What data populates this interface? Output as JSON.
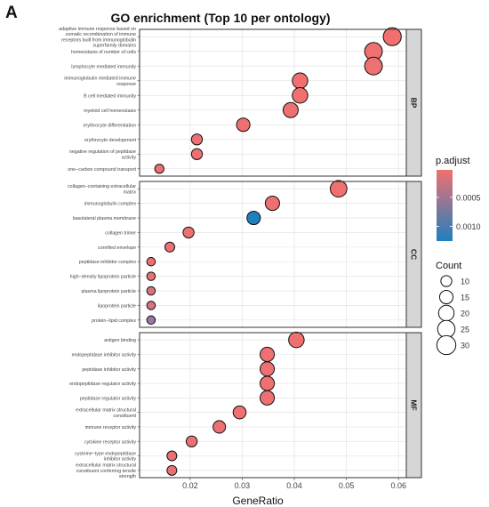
{
  "figure": {
    "panel_letter": "A",
    "title": "GO enrichment (Top 10 per ontology)"
  },
  "chart_data": {
    "type": "scatter",
    "title": "GO enrichment (Top 10 per ontology)",
    "xlabel": "GeneRatio",
    "ylabel": "",
    "xlim": [
      0.0103,
      0.0615
    ],
    "xticks": [
      0.02,
      0.03,
      0.04,
      0.05,
      0.06
    ],
    "xtick_labels": [
      "0.02",
      "0.03",
      "0.04",
      "0.05",
      "0.06"
    ],
    "grid": true,
    "panels": [
      {
        "strip": "BP",
        "terms": [
          {
            "label": "adaptive immune response based on somatic recombination of immune receptors built from immunoglobulin superfamily domains",
            "lines": [
              "adaptive immune response based on",
              "somatic recombination of immune",
              "receptors built from immunoglobulin",
              "superfamily domains"
            ],
            "x": 0.0588,
            "count": 27,
            "p_adjust": 3e-05
          },
          {
            "label": "homeostasis of number of cells",
            "lines": [
              "homeostasis of number of cells"
            ],
            "x": 0.0552,
            "count": 26,
            "p_adjust": 4e-05
          },
          {
            "label": "lymphocyte mediated immunity",
            "lines": [
              "lymphocyte mediated immunity"
            ],
            "x": 0.0552,
            "count": 26,
            "p_adjust": 4e-05
          },
          {
            "label": "immunoglobulin mediated immune response",
            "lines": [
              "immunoglobulin mediated immune",
              "response"
            ],
            "x": 0.0411,
            "count": 20,
            "p_adjust": 3e-05
          },
          {
            "label": "B cell mediated immunity",
            "lines": [
              "B cell mediated immunity"
            ],
            "x": 0.0411,
            "count": 20,
            "p_adjust": 3e-05
          },
          {
            "label": "myeloid cell homeostasis",
            "lines": [
              "myeloid cell homeostasis"
            ],
            "x": 0.0393,
            "count": 19,
            "p_adjust": 4e-05
          },
          {
            "label": "erythrocyte differentiation",
            "lines": [
              "erythrocyte differentiation"
            ],
            "x": 0.0302,
            "count": 15,
            "p_adjust": 4e-05
          },
          {
            "label": "erythrocyte development",
            "lines": [
              "erythrocyte development"
            ],
            "x": 0.0213,
            "count": 10,
            "p_adjust": 5e-05
          },
          {
            "label": "negative regulation of peptidase activity",
            "lines": [
              "negative regulation of peptidase",
              "activity"
            ],
            "x": 0.0213,
            "count": 10,
            "p_adjust": 5e-05
          },
          {
            "label": "one-carbon compound transport",
            "lines": [
              "one−carbon compound transport"
            ],
            "x": 0.0141,
            "count": 7,
            "p_adjust": 5e-05
          }
        ]
      },
      {
        "strip": "CC",
        "terms": [
          {
            "label": "collagen-containing extracellular matrix",
            "lines": [
              "collagen−containing extracellular",
              "matrix"
            ],
            "x": 0.0485,
            "count": 23,
            "p_adjust": 3e-05
          },
          {
            "label": "immunoglobulin complex",
            "lines": [
              "immunoglobulin complex"
            ],
            "x": 0.0358,
            "count": 17,
            "p_adjust": 4e-05
          },
          {
            "label": "basolateral plasma membrane",
            "lines": [
              "basolateral plasma membrane"
            ],
            "x": 0.0322,
            "count": 15,
            "p_adjust": 0.00125
          },
          {
            "label": "collagen trimer",
            "lines": [
              "collagen trimer"
            ],
            "x": 0.0197,
            "count": 10,
            "p_adjust": 5e-05
          },
          {
            "label": "cornified envelope",
            "lines": [
              "cornified envelope"
            ],
            "x": 0.0161,
            "count": 8,
            "p_adjust": 5e-05
          },
          {
            "label": "peptidase inhibitor complex",
            "lines": [
              "peptidase inhibitor complex"
            ],
            "x": 0.0125,
            "count": 6,
            "p_adjust": 6e-05
          },
          {
            "label": "high-density lipoprotein particle",
            "lines": [
              "high−density lipoprotein particle"
            ],
            "x": 0.0125,
            "count": 6,
            "p_adjust": 8e-05
          },
          {
            "label": "plasma lipoprotein particle",
            "lines": [
              "plasma lipoprotein particle"
            ],
            "x": 0.0125,
            "count": 6,
            "p_adjust": 0.00018
          },
          {
            "label": "lipoprotein particle",
            "lines": [
              "lipoprotein particle"
            ],
            "x": 0.0125,
            "count": 6,
            "p_adjust": 0.00018
          },
          {
            "label": "protein-lipid complex",
            "lines": [
              "protein−lipid complex"
            ],
            "x": 0.0125,
            "count": 6,
            "p_adjust": 0.0006
          }
        ]
      },
      {
        "strip": "MF",
        "terms": [
          {
            "label": "antigen binding",
            "lines": [
              "antigen binding"
            ],
            "x": 0.0404,
            "count": 20,
            "p_adjust": 3e-05
          },
          {
            "label": "endopeptidase inhibitor activity",
            "lines": [
              "endopeptidase inhibitor activity"
            ],
            "x": 0.0348,
            "count": 17,
            "p_adjust": 4e-05
          },
          {
            "label": "peptidase inhibitor activity",
            "lines": [
              "peptidase inhibitor activity"
            ],
            "x": 0.0348,
            "count": 17,
            "p_adjust": 4e-05
          },
          {
            "label": "endopeptidase regulator activity",
            "lines": [
              "endopeptidase regulator activity"
            ],
            "x": 0.0348,
            "count": 17,
            "p_adjust": 4e-05
          },
          {
            "label": "peptidase regulator activity",
            "lines": [
              "peptidase regulator activity"
            ],
            "x": 0.0348,
            "count": 17,
            "p_adjust": 4e-05
          },
          {
            "label": "extracellular matrix structural constituent",
            "lines": [
              "extracellular matrix structural",
              "constituent"
            ],
            "x": 0.0295,
            "count": 14,
            "p_adjust": 4e-05
          },
          {
            "label": "immune receptor activity",
            "lines": [
              "immune receptor activity"
            ],
            "x": 0.0256,
            "count": 13,
            "p_adjust": 4e-05
          },
          {
            "label": "cytokine receptor activity",
            "lines": [
              "cytokine receptor activity"
            ],
            "x": 0.0203,
            "count": 10,
            "p_adjust": 5e-05
          },
          {
            "label": "cysteine-type endopeptidase inhibitor activity",
            "lines": [
              "cysteine−type endopeptidase",
              "inhibitor activity"
            ],
            "x": 0.0165,
            "count": 8,
            "p_adjust": 6e-05
          },
          {
            "label": "extracellular matrix structural constituent conferring tensile strength",
            "lines": [
              "extracellular matrix structural",
              "constituent conferring tensile",
              "strength"
            ],
            "x": 0.0165,
            "count": 8,
            "p_adjust": 6e-05
          }
        ]
      }
    ],
    "color_legend": {
      "title": "p.adjust",
      "labels": [
        "0.0005",
        "0.0010"
      ],
      "breaks": [
        0.0005,
        0.001
      ],
      "range": [
        3e-05,
        0.00125
      ],
      "low_color": "#f07070",
      "high_color": "#1f7fbf"
    },
    "size_legend": {
      "title": "Count",
      "values": [
        10,
        15,
        20,
        25,
        30
      ],
      "labels": [
        "10",
        "15",
        "20",
        "25",
        "30"
      ]
    }
  }
}
